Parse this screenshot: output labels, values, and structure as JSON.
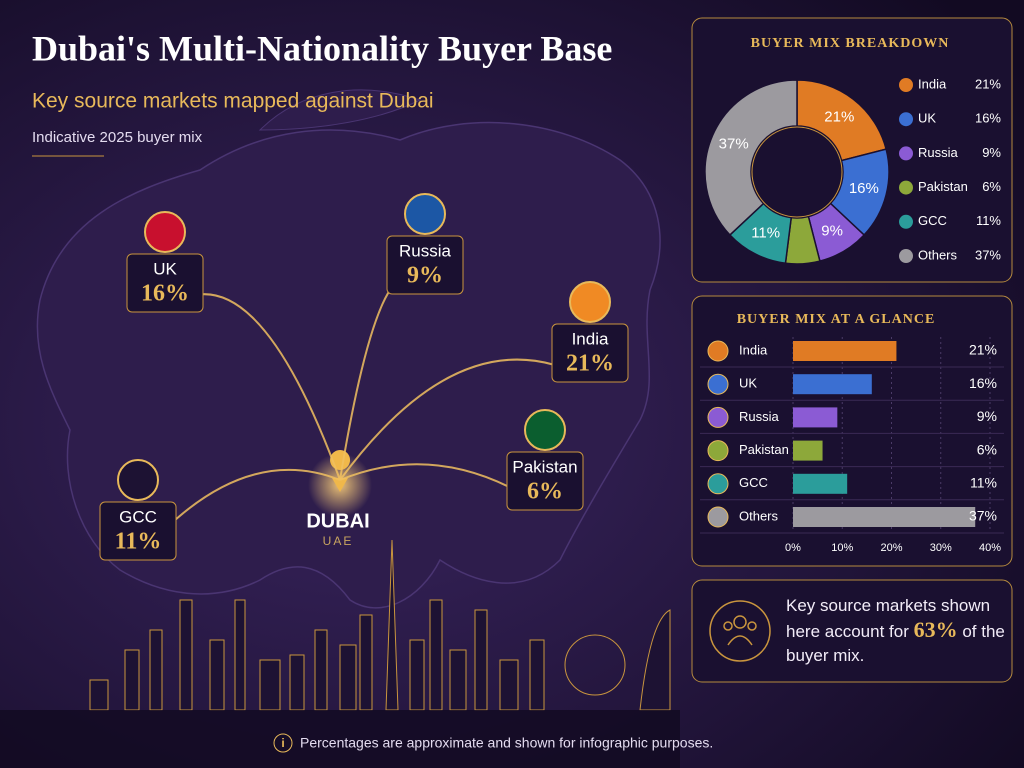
{
  "header": {
    "title": "Dubai's Multi-Nationality Buyer Base",
    "subtitle": "Key source markets mapped against Dubai",
    "note": "Indicative 2025 buyer mix"
  },
  "map": {
    "destination": "DUBAI",
    "destination_country": "UAE",
    "markets": [
      {
        "name": "UK",
        "value_label": "16%"
      },
      {
        "name": "Russia",
        "value_label": "9%"
      },
      {
        "name": "India",
        "value_label": "21%"
      },
      {
        "name": "Pakistan",
        "value_label": "6%"
      },
      {
        "name": "GCC",
        "value_label": "11%"
      }
    ]
  },
  "chart_data": [
    {
      "type": "pie",
      "donut": true,
      "title": "BUYER MIX BREAKDOWN",
      "categories": [
        "India",
        "UK",
        "Russia",
        "Pakistan",
        "GCC",
        "Others"
      ],
      "values": [
        21,
        16,
        9,
        6,
        11,
        37
      ],
      "value_labels": [
        "21%",
        "16%",
        "9%",
        "6%",
        "11%",
        "37%"
      ],
      "colors": [
        "#e07b24",
        "#3b6fd2",
        "#8b5bd4",
        "#8da83a",
        "#2b9d9b",
        "#9c9a9f"
      ]
    },
    {
      "type": "bar",
      "orientation": "horizontal",
      "title": "BUYER MIX AT A GLANCE",
      "categories": [
        "India",
        "UK",
        "Russia",
        "Pakistan",
        "GCC",
        "Others"
      ],
      "values": [
        21,
        16,
        9,
        6,
        11,
        37
      ],
      "value_labels": [
        "21%",
        "16%",
        "9%",
        "6%",
        "11%",
        "37%"
      ],
      "colors": [
        "#e07b24",
        "#3b6fd2",
        "#8b5bd4",
        "#8da83a",
        "#2b9d9b",
        "#9c9a9f"
      ],
      "xlim": [
        0,
        40
      ],
      "xticks": [
        {
          "value": 0,
          "label": "0%"
        },
        {
          "value": 10,
          "label": "10%"
        },
        {
          "value": 20,
          "label": "20%"
        },
        {
          "value": 30,
          "label": "30%"
        },
        {
          "value": 40,
          "label": "40%"
        }
      ],
      "grid": true
    }
  ],
  "callout": {
    "before": "Key source markets shown here account for",
    "highlight": "63%",
    "after": "of the buyer mix."
  },
  "footer": "Percentages are approximate and shown for infographic purposes."
}
